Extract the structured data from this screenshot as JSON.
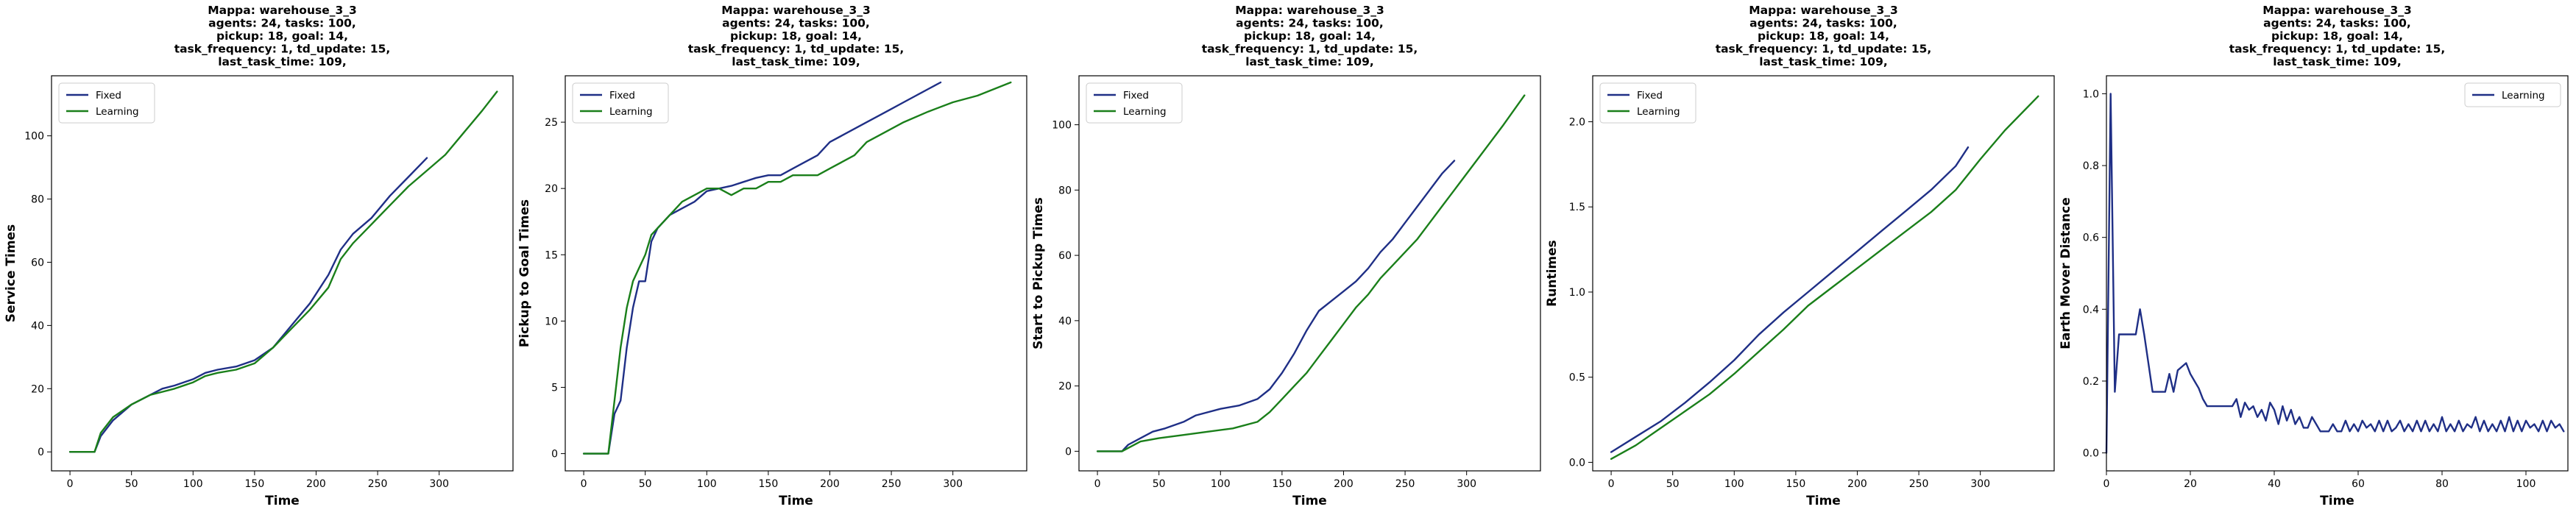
{
  "chart_data": [
    {
      "type": "line",
      "title": "Mappa: warehouse_3_3\nagents: 24, tasks: 100,\npickup: 18, goal: 14,\ntask_frequency: 1, td_update: 15,\nlast_task_time: 109,",
      "xlabel": "Time",
      "ylabel": "Service Times",
      "xlim": [
        -15,
        360
      ],
      "ylim": [
        -6,
        119
      ],
      "xticks": [
        0,
        50,
        100,
        150,
        200,
        250,
        300
      ],
      "yticks": [
        0,
        20,
        40,
        60,
        80,
        100
      ],
      "grid": false,
      "legend": "top-left",
      "series": [
        {
          "name": "Fixed",
          "color": "#1f2f86",
          "x": [
            0,
            20,
            25,
            35,
            50,
            65,
            75,
            85,
            100,
            110,
            120,
            135,
            150,
            165,
            180,
            195,
            210,
            220,
            230,
            245,
            260,
            275,
            290
          ],
          "y": [
            0,
            0,
            5,
            10,
            15,
            18,
            20,
            21,
            23,
            25,
            26,
            27,
            29,
            33,
            40,
            47,
            56,
            64,
            69,
            74,
            81,
            87,
            93
          ]
        },
        {
          "name": "Learning",
          "color": "#1a7f1a",
          "x": [
            0,
            20,
            25,
            35,
            50,
            65,
            75,
            85,
            100,
            110,
            120,
            135,
            150,
            165,
            180,
            195,
            210,
            220,
            230,
            245,
            260,
            275,
            290,
            305,
            320,
            335,
            347
          ],
          "y": [
            0,
            0,
            6,
            11,
            15,
            18,
            19,
            20,
            22,
            24,
            25,
            26,
            28,
            33,
            39,
            45,
            52,
            61,
            66,
            72,
            78,
            84,
            89,
            94,
            101,
            108,
            114
          ]
        }
      ]
    },
    {
      "type": "line",
      "title": "Mappa: warehouse_3_3\nagents: 24, tasks: 100,\npickup: 18, goal: 14,\ntask_frequency: 1, td_update: 15,\nlast_task_time: 109,",
      "xlabel": "Time",
      "ylabel": "Pickup to Goal Times",
      "xlim": [
        -15,
        360
      ],
      "ylim": [
        -1.3,
        28.5
      ],
      "xticks": [
        0,
        50,
        100,
        150,
        200,
        250,
        300
      ],
      "yticks": [
        0,
        5,
        10,
        15,
        20,
        25
      ],
      "grid": false,
      "legend": "top-left",
      "series": [
        {
          "name": "Fixed",
          "color": "#1f2f86",
          "x": [
            0,
            20,
            25,
            30,
            35,
            40,
            45,
            50,
            55,
            60,
            70,
            80,
            90,
            100,
            110,
            120,
            130,
            140,
            150,
            160,
            170,
            180,
            190,
            200,
            210,
            220,
            230,
            240,
            250,
            260,
            270,
            280,
            290
          ],
          "y": [
            0,
            0,
            3,
            4,
            8,
            11,
            13,
            13,
            16,
            17,
            18,
            18.5,
            19,
            19.8,
            20,
            20.2,
            20.5,
            20.8,
            21,
            21,
            21.5,
            22,
            22.5,
            23.5,
            24,
            24.5,
            25,
            25.5,
            26,
            26.5,
            27,
            27.5,
            28
          ]
        },
        {
          "name": "Learning",
          "color": "#1a7f1a",
          "x": [
            0,
            20,
            25,
            30,
            35,
            40,
            45,
            50,
            55,
            60,
            70,
            80,
            90,
            100,
            110,
            120,
            130,
            140,
            150,
            160,
            170,
            180,
            190,
            200,
            210,
            220,
            230,
            240,
            250,
            260,
            280,
            300,
            320,
            347
          ],
          "y": [
            0,
            0,
            4,
            8,
            11,
            13,
            14,
            15,
            16.5,
            17,
            18,
            19,
            19.5,
            20,
            20,
            19.5,
            20,
            20,
            20.5,
            20.5,
            21,
            21,
            21,
            21.5,
            22,
            22.5,
            23.5,
            24,
            24.5,
            25,
            25.8,
            26.5,
            27,
            28
          ]
        }
      ]
    },
    {
      "type": "line",
      "title": "Mappa: warehouse_3_3\nagents: 24, tasks: 100,\npickup: 18, goal: 14,\ntask_frequency: 1, td_update: 15,\nlast_task_time: 109,",
      "xlabel": "Time",
      "ylabel": "Start to Pickup Times",
      "xlim": [
        -15,
        360
      ],
      "ylim": [
        -6,
        115
      ],
      "xticks": [
        0,
        50,
        100,
        150,
        200,
        250,
        300
      ],
      "yticks": [
        0,
        20,
        40,
        60,
        80,
        100
      ],
      "grid": false,
      "legend": "top-left",
      "series": [
        {
          "name": "Fixed",
          "color": "#1f2f86",
          "x": [
            0,
            20,
            25,
            35,
            45,
            55,
            70,
            80,
            100,
            115,
            130,
            140,
            150,
            160,
            170,
            180,
            190,
            200,
            210,
            220,
            230,
            240,
            250,
            260,
            270,
            280,
            290
          ],
          "y": [
            0,
            0,
            2,
            4,
            6,
            7,
            9,
            11,
            13,
            14,
            16,
            19,
            24,
            30,
            37,
            43,
            46,
            49,
            52,
            56,
            61,
            65,
            70,
            75,
            80,
            85,
            89
          ]
        },
        {
          "name": "Learning",
          "color": "#1a7f1a",
          "x": [
            0,
            20,
            25,
            35,
            50,
            70,
            90,
            110,
            130,
            140,
            150,
            160,
            170,
            180,
            190,
            200,
            210,
            220,
            230,
            240,
            250,
            260,
            270,
            280,
            290,
            300,
            310,
            320,
            330,
            347
          ],
          "y": [
            0,
            0,
            1,
            3,
            4,
            5,
            6,
            7,
            9,
            12,
            16,
            20,
            24,
            29,
            34,
            39,
            44,
            48,
            53,
            57,
            61,
            65,
            70,
            75,
            80,
            85,
            90,
            95,
            100,
            109
          ]
        }
      ]
    },
    {
      "type": "line",
      "title": "Mappa: warehouse_3_3\nagents: 24, tasks: 100,\npickup: 18, goal: 14,\ntask_frequency: 1, td_update: 15,\nlast_task_time: 109,",
      "xlabel": "Time",
      "ylabel": "Runtimes",
      "xlim": [
        -15,
        360
      ],
      "ylim": [
        -0.05,
        2.27
      ],
      "xticks": [
        0,
        50,
        100,
        150,
        200,
        250,
        300
      ],
      "yticks": [
        0.0,
        0.5,
        1.0,
        1.5,
        2.0
      ],
      "grid": false,
      "legend": "top-left",
      "series": [
        {
          "name": "Fixed",
          "color": "#1f2f86",
          "x": [
            0,
            20,
            40,
            60,
            80,
            100,
            120,
            140,
            160,
            180,
            200,
            220,
            240,
            260,
            280,
            290
          ],
          "y": [
            0.06,
            0.15,
            0.24,
            0.35,
            0.47,
            0.6,
            0.75,
            0.88,
            1.0,
            1.12,
            1.24,
            1.36,
            1.48,
            1.6,
            1.74,
            1.85
          ]
        },
        {
          "name": "Learning",
          "color": "#1a7f1a",
          "x": [
            0,
            20,
            40,
            60,
            80,
            100,
            120,
            140,
            160,
            180,
            200,
            220,
            240,
            260,
            280,
            300,
            320,
            347
          ],
          "y": [
            0.02,
            0.1,
            0.2,
            0.3,
            0.4,
            0.52,
            0.65,
            0.78,
            0.92,
            1.03,
            1.14,
            1.25,
            1.36,
            1.47,
            1.6,
            1.78,
            1.95,
            2.15
          ]
        }
      ]
    },
    {
      "type": "line",
      "title": "Mappa: warehouse_3_3\nagents: 24, tasks: 100,\npickup: 18, goal: 14,\ntask_frequency: 1, td_update: 15,\nlast_task_time: 109,",
      "xlabel": "Time",
      "ylabel": "Earth Mover Distance",
      "xlim": [
        0,
        110
      ],
      "ylim": [
        -0.05,
        1.05
      ],
      "xticks": [
        0,
        20,
        40,
        60,
        80,
        100
      ],
      "yticks": [
        0.0,
        0.2,
        0.4,
        0.6,
        0.8,
        1.0
      ],
      "grid": false,
      "legend": "top-right",
      "series": [
        {
          "name": "Learning",
          "color": "#1f2f86",
          "x": [
            0,
            1,
            2,
            3,
            4,
            5,
            6,
            7,
            8,
            9,
            10,
            11,
            12,
            13,
            14,
            15,
            16,
            17,
            18,
            19,
            20,
            21,
            22,
            23,
            24,
            25,
            26,
            27,
            28,
            29,
            30,
            31,
            32,
            33,
            34,
            35,
            36,
            37,
            38,
            39,
            40,
            41,
            42,
            43,
            44,
            45,
            46,
            47,
            48,
            49,
            50,
            51,
            52,
            53,
            54,
            55,
            56,
            57,
            58,
            59,
            60,
            61,
            62,
            63,
            64,
            65,
            66,
            67,
            68,
            69,
            70,
            71,
            72,
            73,
            74,
            75,
            76,
            77,
            78,
            79,
            80,
            81,
            82,
            83,
            84,
            85,
            86,
            87,
            88,
            89,
            90,
            91,
            92,
            93,
            94,
            95,
            96,
            97,
            98,
            99,
            100,
            101,
            102,
            103,
            104,
            105,
            106,
            107,
            108,
            109
          ],
          "y": [
            0.0,
            1.0,
            0.17,
            0.33,
            0.33,
            0.33,
            0.33,
            0.33,
            0.4,
            0.33,
            0.25,
            0.17,
            0.17,
            0.17,
            0.17,
            0.22,
            0.17,
            0.23,
            0.24,
            0.25,
            0.22,
            0.2,
            0.18,
            0.15,
            0.13,
            0.13,
            0.13,
            0.13,
            0.13,
            0.13,
            0.13,
            0.15,
            0.1,
            0.14,
            0.12,
            0.13,
            0.1,
            0.12,
            0.09,
            0.14,
            0.12,
            0.08,
            0.13,
            0.09,
            0.12,
            0.08,
            0.1,
            0.07,
            0.07,
            0.1,
            0.08,
            0.06,
            0.06,
            0.06,
            0.08,
            0.06,
            0.06,
            0.09,
            0.06,
            0.08,
            0.06,
            0.09,
            0.07,
            0.08,
            0.06,
            0.09,
            0.06,
            0.09,
            0.06,
            0.07,
            0.09,
            0.06,
            0.08,
            0.06,
            0.09,
            0.06,
            0.09,
            0.06,
            0.08,
            0.06,
            0.1,
            0.06,
            0.08,
            0.06,
            0.09,
            0.06,
            0.08,
            0.07,
            0.1,
            0.06,
            0.09,
            0.06,
            0.08,
            0.06,
            0.09,
            0.06,
            0.1,
            0.06,
            0.09,
            0.06,
            0.09,
            0.07,
            0.08,
            0.06,
            0.09,
            0.06,
            0.09,
            0.07,
            0.08,
            0.06
          ]
        }
      ]
    }
  ]
}
